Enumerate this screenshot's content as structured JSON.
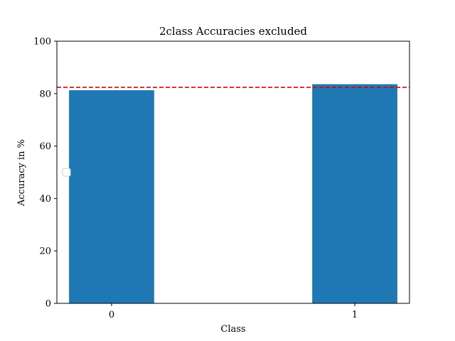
{
  "chart_data": {
    "type": "bar",
    "title": "2class Accuracies excluded",
    "xlabel": "Class",
    "ylabel": "Accuracy in %",
    "categories": [
      "0",
      "1"
    ],
    "values": [
      81.3,
      83.6
    ],
    "ylim": [
      0,
      100
    ],
    "yticks": [
      "0",
      "20",
      "40",
      "60",
      "80",
      "100"
    ],
    "reference_line": {
      "value": 82.4,
      "color": "#dd0000",
      "style": "dashed"
    },
    "bar_color": "#1f77b4",
    "legend": {
      "placement": "center-left",
      "entries": []
    },
    "grid": false
  }
}
